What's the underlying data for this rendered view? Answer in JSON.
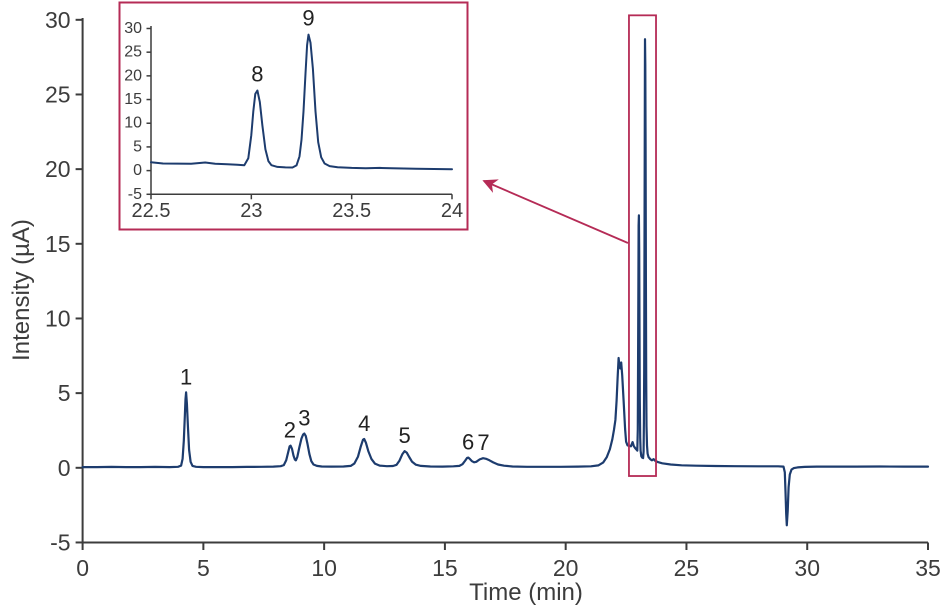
{
  "colors": {
    "trace": "#1d3c6e",
    "axis": "#3c3c3c",
    "text": "#3c3c3c",
    "peak_label": "#222222",
    "accent": "#b52b56",
    "background": "#ffffff"
  },
  "chart_data": {
    "type": "line",
    "title": "",
    "xlabel": "Time (min)",
    "ylabel": "Intensity (µA)",
    "main_axis": {
      "xlim": [
        0,
        35
      ],
      "ylim": [
        -5,
        30
      ],
      "xticks": [
        0,
        5,
        10,
        15,
        20,
        25,
        30,
        35
      ],
      "yticks": [
        30,
        25,
        20,
        15,
        10,
        5,
        0,
        -5
      ],
      "grid": false,
      "legend": "none"
    },
    "series": [
      {
        "name": "chromatogram-intensity-trace",
        "color": "#1d3c6e",
        "points": [
          [
            0,
            0.05
          ],
          [
            0.6,
            0.05
          ],
          [
            1.2,
            0.06
          ],
          [
            1.8,
            0.05
          ],
          [
            2.4,
            0.05
          ],
          [
            3.0,
            0.06
          ],
          [
            3.6,
            0.05
          ],
          [
            3.95,
            0.07
          ],
          [
            4.08,
            0.15
          ],
          [
            4.14,
            0.6
          ],
          [
            4.19,
            1.8
          ],
          [
            4.23,
            3.4
          ],
          [
            4.26,
            4.6
          ],
          [
            4.285,
            5.05
          ],
          [
            4.32,
            4.3
          ],
          [
            4.36,
            2.8
          ],
          [
            4.41,
            1.2
          ],
          [
            4.47,
            0.4
          ],
          [
            4.55,
            0.13
          ],
          [
            4.7,
            0.07
          ],
          [
            5.0,
            0.05
          ],
          [
            5.6,
            0.05
          ],
          [
            6.2,
            0.05
          ],
          [
            6.8,
            0.06
          ],
          [
            7.4,
            0.07
          ],
          [
            7.9,
            0.08
          ],
          [
            8.2,
            0.11
          ],
          [
            8.33,
            0.18
          ],
          [
            8.43,
            0.5
          ],
          [
            8.51,
            1.05
          ],
          [
            8.57,
            1.43
          ],
          [
            8.61,
            1.48
          ],
          [
            8.67,
            1.27
          ],
          [
            8.73,
            0.82
          ],
          [
            8.79,
            0.55
          ],
          [
            8.83,
            0.5
          ],
          [
            8.89,
            0.72
          ],
          [
            8.97,
            1.35
          ],
          [
            9.06,
            1.95
          ],
          [
            9.13,
            2.22
          ],
          [
            9.18,
            2.3
          ],
          [
            9.24,
            2.12
          ],
          [
            9.31,
            1.6
          ],
          [
            9.39,
            0.92
          ],
          [
            9.47,
            0.45
          ],
          [
            9.56,
            0.22
          ],
          [
            9.7,
            0.13
          ],
          [
            9.9,
            0.09
          ],
          [
            10.3,
            0.08
          ],
          [
            10.8,
            0.09
          ],
          [
            11.1,
            0.13
          ],
          [
            11.25,
            0.28
          ],
          [
            11.4,
            0.75
          ],
          [
            11.52,
            1.45
          ],
          [
            11.61,
            1.88
          ],
          [
            11.66,
            1.93
          ],
          [
            11.73,
            1.68
          ],
          [
            11.83,
            1.12
          ],
          [
            11.96,
            0.58
          ],
          [
            12.1,
            0.28
          ],
          [
            12.3,
            0.15
          ],
          [
            12.6,
            0.11
          ],
          [
            12.85,
            0.12
          ],
          [
            13.0,
            0.2
          ],
          [
            13.12,
            0.48
          ],
          [
            13.24,
            0.92
          ],
          [
            13.33,
            1.12
          ],
          [
            13.42,
            1.02
          ],
          [
            13.52,
            0.72
          ],
          [
            13.64,
            0.4
          ],
          [
            13.8,
            0.21
          ],
          [
            14.0,
            0.13
          ],
          [
            14.4,
            0.09
          ],
          [
            14.9,
            0.08
          ],
          [
            15.35,
            0.1
          ],
          [
            15.6,
            0.13
          ],
          [
            15.73,
            0.24
          ],
          [
            15.84,
            0.48
          ],
          [
            15.92,
            0.66
          ],
          [
            15.97,
            0.68
          ],
          [
            16.04,
            0.58
          ],
          [
            16.12,
            0.44
          ],
          [
            16.21,
            0.37
          ],
          [
            16.3,
            0.4
          ],
          [
            16.44,
            0.56
          ],
          [
            16.58,
            0.64
          ],
          [
            16.7,
            0.6
          ],
          [
            16.84,
            0.5
          ],
          [
            17.0,
            0.36
          ],
          [
            17.2,
            0.22
          ],
          [
            17.45,
            0.14
          ],
          [
            17.8,
            0.09
          ],
          [
            18.4,
            0.07
          ],
          [
            19.1,
            0.07
          ],
          [
            19.8,
            0.07
          ],
          [
            20.5,
            0.08
          ],
          [
            21.05,
            0.1
          ],
          [
            21.35,
            0.16
          ],
          [
            21.55,
            0.35
          ],
          [
            21.7,
            0.7
          ],
          [
            21.83,
            1.25
          ],
          [
            21.93,
            1.9
          ],
          [
            22.0,
            2.55
          ],
          [
            22.06,
            3.2
          ],
          [
            22.11,
            4.5
          ],
          [
            22.15,
            6.0
          ],
          [
            22.19,
            7.35
          ],
          [
            22.22,
            6.9
          ],
          [
            22.26,
            6.65
          ],
          [
            22.3,
            7.05
          ],
          [
            22.34,
            6.2
          ],
          [
            22.4,
            4.5
          ],
          [
            22.46,
            2.6
          ],
          [
            22.5,
            1.75
          ],
          [
            22.56,
            1.5
          ],
          [
            22.63,
            1.48
          ],
          [
            22.7,
            1.44
          ],
          [
            22.77,
            1.72
          ],
          [
            22.82,
            1.45
          ],
          [
            22.88,
            1.32
          ],
          [
            22.93,
            1.22
          ],
          [
            22.965,
            1.15
          ],
          [
            22.985,
            2.6
          ],
          [
            23.0,
            7.5
          ],
          [
            23.01,
            12.5
          ],
          [
            23.02,
            16.2
          ],
          [
            23.03,
            16.9
          ],
          [
            23.042,
            14.5
          ],
          [
            23.055,
            9.5
          ],
          [
            23.07,
            4.5
          ],
          [
            23.085,
            2.0
          ],
          [
            23.1,
            1.15
          ],
          [
            23.13,
            0.78
          ],
          [
            23.17,
            0.68
          ],
          [
            23.205,
            0.65
          ],
          [
            23.225,
            1.1
          ],
          [
            23.24,
            3.0
          ],
          [
            23.25,
            6.5
          ],
          [
            23.26,
            12.5
          ],
          [
            23.27,
            20.5
          ],
          [
            23.278,
            26.5
          ],
          [
            23.285,
            28.7
          ],
          [
            23.295,
            27.0
          ],
          [
            23.307,
            21.5
          ],
          [
            23.32,
            12.5
          ],
          [
            23.333,
            6.0
          ],
          [
            23.348,
            2.8
          ],
          [
            23.365,
            1.5
          ],
          [
            23.39,
            0.95
          ],
          [
            23.43,
            0.72
          ],
          [
            23.5,
            0.58
          ],
          [
            23.57,
            0.5
          ],
          [
            23.64,
            0.58
          ],
          [
            23.7,
            0.48
          ],
          [
            23.82,
            0.38
          ],
          [
            24.0,
            0.3
          ],
          [
            24.35,
            0.22
          ],
          [
            24.8,
            0.17
          ],
          [
            25.4,
            0.14
          ],
          [
            26.2,
            0.12
          ],
          [
            27.0,
            0.11
          ],
          [
            28.0,
            0.1
          ],
          [
            28.8,
            0.1
          ],
          [
            29.02,
            0.08
          ],
          [
            29.07,
            -0.3
          ],
          [
            29.1,
            -1.6
          ],
          [
            29.13,
            -3.1
          ],
          [
            29.155,
            -3.85
          ],
          [
            29.19,
            -2.9
          ],
          [
            29.23,
            -1.3
          ],
          [
            29.28,
            -0.45
          ],
          [
            29.35,
            -0.12
          ],
          [
            29.45,
            -0.02
          ],
          [
            29.6,
            0.03
          ],
          [
            29.9,
            0.06
          ],
          [
            30.4,
            0.08
          ],
          [
            31.2,
            0.08
          ],
          [
            32,
            0.08
          ],
          [
            33,
            0.09
          ],
          [
            34,
            0.08
          ],
          [
            35,
            0.08
          ]
        ]
      }
    ],
    "peak_labels": [
      {
        "label": "1",
        "time": 4.285,
        "intensity": 5.05
      },
      {
        "label": "2",
        "time": 8.58,
        "intensity": 1.48
      },
      {
        "label": "3",
        "time": 9.18,
        "intensity": 2.3
      },
      {
        "label": "4",
        "time": 11.66,
        "intensity": 1.93
      },
      {
        "label": "5",
        "time": 13.33,
        "intensity": 1.12
      },
      {
        "label": "6",
        "time": 15.96,
        "intensity": 0.68
      },
      {
        "label": "7",
        "time": 16.6,
        "intensity": 0.64
      }
    ],
    "inset": {
      "xlim": [
        22.5,
        24
      ],
      "ylim": [
        -5,
        30
      ],
      "xticks": [
        22.5,
        23,
        23.5,
        24
      ],
      "yticks": [
        30,
        25,
        20,
        15,
        10,
        5,
        0,
        -5
      ],
      "grid": false,
      "peak_labels": [
        {
          "label": "8",
          "time": 23.03,
          "intensity": 16.9
        },
        {
          "label": "9",
          "time": 23.285,
          "intensity": 28.7
        }
      ]
    },
    "annotations": {
      "highlight_box": {
        "time_range": [
          22.62,
          23.74
        ],
        "intensity_range": [
          -0.55,
          30.3
        ]
      },
      "callout_arrow": {
        "from": "highlight-box",
        "to": "inset-plot"
      }
    }
  }
}
